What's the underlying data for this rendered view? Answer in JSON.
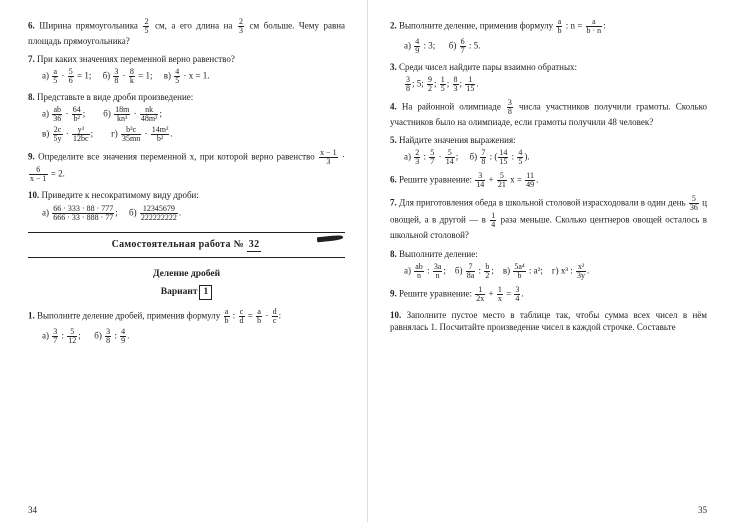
{
  "left": {
    "p6": {
      "num": "6.",
      "text_a": "Ширина прямоугольника ",
      "f1n": "2",
      "f1d": "5",
      "text_b": " см, а его длина на ",
      "f2n": "2",
      "f2d": "3",
      "text_c": " см больше. Чему равна площадь прямоуголь­ника?"
    },
    "p7": {
      "num": "7.",
      "text": "При каких значениях переменной верно равен­ство?",
      "a_lbl": "а) ",
      "a_f1n": "a",
      "a_f1d": "5",
      "a_mid": " · ",
      "a_f2n": "5",
      "a_f2d": "6",
      "a_eq": " = 1;",
      "b_lbl": "б) ",
      "b_f1n": "3",
      "b_f1d": "8",
      "b_mid": " · ",
      "b_f2n": "8",
      "b_f2d": "k",
      "b_eq": " = 1;",
      "c_lbl": "в) ",
      "c_f1n": "4",
      "c_f1d": "5",
      "c_eq": " · x = 1."
    },
    "p8": {
      "num": "8.",
      "text": "Представьте в виде дроби произведение:",
      "a_lbl": "а) ",
      "a_f1n": "ab",
      "a_f1d": "36",
      "a_mid": " · ",
      "a_f2n": "64",
      "a_f2d": "b²",
      "a_end": ";",
      "b_lbl": "б) ",
      "b_f1n": "18m",
      "b_f1d": "kn³",
      "b_mid": " · ",
      "b_f2n": "nk",
      "b_f2d": "48m²",
      "b_end": ";",
      "c_lbl": "в) ",
      "c_f1n": "2c",
      "c_f1d": "5y",
      "c_mid": " · ",
      "c_f2n": "y³",
      "c_f2d": "12bc",
      "c_end": ";",
      "d_lbl": "г) ",
      "d_f1n": "b³c",
      "d_f1d": "35mn",
      "d_mid": " · ",
      "d_f2n": "14m²",
      "d_f2d": "b²",
      "d_end": "."
    },
    "p9": {
      "num": "9.",
      "text_a": "Определите все значения переменной x, при ко­торой верно равенство ",
      "f1n": "x − 1",
      "f1d": "3",
      "mid": " · ",
      "f2n": "6",
      "f2d": "x − 1",
      "eq": " = 2."
    },
    "p10": {
      "num": "10.",
      "text": "Приведите к несократимому виду дроби:",
      "a_lbl": "а) ",
      "a_fn": "66 · 333 · 88 · 777",
      "a_fd": "666 · 33 · 888 · 77",
      "a_end": ";",
      "b_lbl": "б) ",
      "b_fn": "12345679",
      "b_fd": "222222222",
      "b_end": "."
    },
    "hw_title_a": "Самостоятельная работа ",
    "hw_no_lbl": "№ ",
    "hw_no": "32",
    "subheading": "Деление дробей",
    "variant_lbl": "Вариант",
    "variant_no": "1",
    "p1": {
      "num": "1.",
      "text_a": "Выполните деление дробей, применив формулу ",
      "f1n": "a",
      "f1d": "b",
      "mid1": " : ",
      "f2n": "c",
      "f2d": "d",
      "mid2": " = ",
      "f3n": "a",
      "f3d": "b",
      "mid3": " · ",
      "f4n": "d",
      "f4d": "c",
      "end": ":",
      "a_lbl": "а) ",
      "a_f1n": "3",
      "a_f1d": "7",
      "a_mid": " : ",
      "a_f2n": "5",
      "a_f2d": "12",
      "a_end": ";",
      "b_lbl": "б) ",
      "b_f1n": "3",
      "b_f1d": "8",
      "b_mid": " : ",
      "b_f2n": "4",
      "b_f2d": "9",
      "b_end": "."
    },
    "pagenum": "34"
  },
  "right": {
    "p2": {
      "num": "2.",
      "text_a": "Выполните деление, применив формулу ",
      "f1n": "a",
      "f1d": "b",
      "mid1": " : n = ",
      "f2n": "a",
      "f2d": "b · n",
      "end": ":",
      "a_lbl": "а) ",
      "a_f1n": "4",
      "a_f1d": "9",
      "a_end": " : 3;",
      "b_lbl": "б) ",
      "b_f1n": "6",
      "b_f1d": "7",
      "b_end": " : 5."
    },
    "p3": {
      "num": "3.",
      "text": "Среди чисел найдите пары взаимно обратных:",
      "list_a": "",
      "f1n": "3",
      "f1d": "8",
      "s1": "; 5; ",
      "f2n": "9",
      "f2d": "2",
      "s2": "; ",
      "f3n": "1",
      "f3d": "5",
      "s3": "; ",
      "f4n": "8",
      "f4d": "3",
      "s4": "; ",
      "f5n": "1",
      "f5d": "15",
      "s5": "."
    },
    "p4": {
      "num": "4.",
      "text_a": "На районной олимпиаде ",
      "f1n": "3",
      "f1d": "8",
      "text_b": " числа участников по­лучили грамоты. Сколько участников было на олимпиаде, если грамоты получили 48 человек?"
    },
    "p5": {
      "num": "5.",
      "text": "Найдите значения выражения:",
      "a_lbl": "а) ",
      "a_f1n": "2",
      "a_f1d": "3",
      "a_mid1": " : ",
      "a_f2n": "5",
      "a_f2d": "7",
      "a_mid2": " · ",
      "a_f3n": "5",
      "a_f3d": "14",
      "a_end": ";",
      "b_lbl": "б) ",
      "b_f1n": "7",
      "b_f1d": "8",
      "b_mid": " : ",
      "b_open": "(",
      "b_f2n": "14",
      "b_f2d": "15",
      "b_mid2": " : ",
      "b_f3n": "4",
      "b_f3d": "5",
      "b_close": ")",
      "b_end": "."
    },
    "p6": {
      "num": "6.",
      "text_a": "Решите уравнение: ",
      "f1n": "3",
      "f1d": "14",
      "mid1": " + ",
      "f2n": "5",
      "f2d": "21",
      "mid2": " x = ",
      "f3n": "11",
      "f3d": "49",
      "end": "."
    },
    "p7": {
      "num": "7.",
      "text_a": "Для приготовления обеда в школьной столовой израсходовали в один день ",
      "f1n": "5",
      "f1d": "36",
      "text_b": " ц овощей, а в дру­гой — в ",
      "f2n": "1",
      "f2d": "4",
      "text_c": " раза меньше. Сколько центнеров ово­щей осталось в школьной столовой?"
    },
    "p8": {
      "num": "8.",
      "text": "Выполните деление:",
      "a_lbl": "а) ",
      "a_f1n": "ab",
      "a_f1d": "n",
      "a_mid": " : ",
      "a_f2n": "3a",
      "a_f2d": "n",
      "a_end": ";",
      "b_lbl": "б) ",
      "b_f1n": "7",
      "b_f1d": "8a",
      "b_mid": " : ",
      "b_f2n": "b",
      "b_f2d": "2",
      "b_end": ";",
      "c_lbl": "в) ",
      "c_f1n": "5a⁴",
      "c_f1d": "b",
      "c_end": " : a²;",
      "d_lbl": "г) ",
      "d_pre": "x³ : ",
      "d_f1n": "x²",
      "d_f1d": "3y",
      "d_end": "."
    },
    "p9": {
      "num": "9.",
      "text_a": "Решите уравнение: ",
      "f1n": "1",
      "f1d": "2x",
      "mid1": " + ",
      "f2n": "1",
      "f2d": "x",
      "eq": " = ",
      "f3n": "3",
      "f3d": "4",
      "end": "."
    },
    "p10": {
      "num": "10.",
      "text": "Заполните пустое место в таблице так, чтобы сумма всех чисел в нём равнялась 1. Посчитайте произведение чисел в каждой строчке. Составьте"
    },
    "pagenum": "35"
  }
}
